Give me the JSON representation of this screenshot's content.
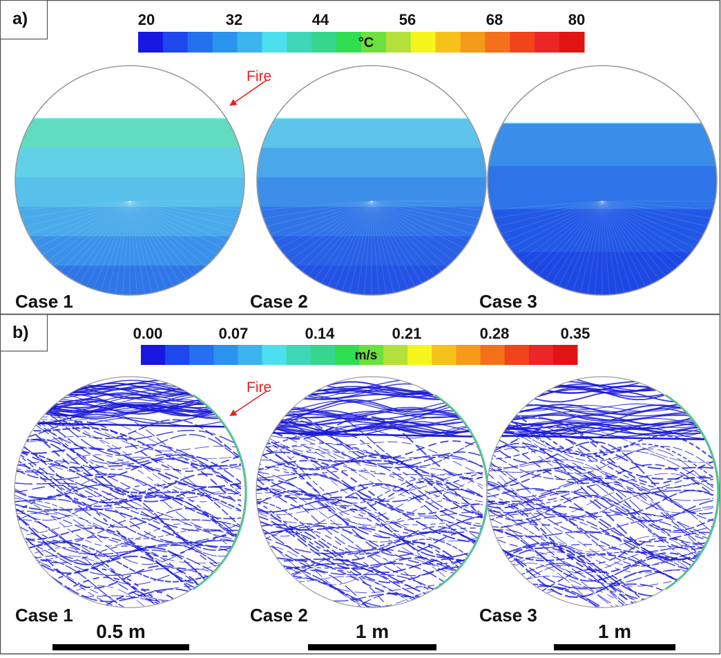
{
  "panel_a": {
    "label": "a)",
    "colorbar": {
      "unit": "°C",
      "ticks": [
        "20",
        "32",
        "44",
        "56",
        "68",
        "80"
      ],
      "colors": [
        "#1818e0",
        "#1f48ec",
        "#2470ee",
        "#2a93ee",
        "#3cb4ee",
        "#4ce0ef",
        "#3fd6b8",
        "#36d68f",
        "#30dd50",
        "#6ce03c",
        "#b4e03c",
        "#f5f51c",
        "#f5c21a",
        "#f59a1a",
        "#f5701a",
        "#f0441a",
        "#ea2626",
        "#e01414"
      ]
    },
    "fire_label": "Fire",
    "cases": [
      {
        "label": "Case 1",
        "fill_fraction": 0.77,
        "band_colors": [
          "#60dcc0",
          "#62d0e6",
          "#58c0ea",
          "#4aaaea",
          "#3c92ea",
          "#3076e8"
        ]
      },
      {
        "label": "Case 2",
        "fill_fraction": 0.77,
        "band_colors": [
          "#5ec4ec",
          "#4aa8ea",
          "#3c8ee8",
          "#3074e8",
          "#2860e6",
          "#2452e4"
        ]
      },
      {
        "label": "Case 3",
        "fill_fraction": 0.75,
        "band_colors": [
          "#3a8eea",
          "#2e74e8",
          "#2258e6",
          "#1e48e2"
        ]
      }
    ]
  },
  "panel_b": {
    "label": "b)",
    "colorbar": {
      "unit": "m/s",
      "ticks": [
        "0.00",
        "0.07",
        "0.14",
        "0.21",
        "0.28",
        "0.35"
      ],
      "colors": [
        "#1818e0",
        "#1f48ec",
        "#2470ee",
        "#2a93ee",
        "#3cb4ee",
        "#4ce0ef",
        "#3fd6b8",
        "#36d68f",
        "#30dd50",
        "#6ce03c",
        "#b4e03c",
        "#f5f51c",
        "#f5c21a",
        "#f59a1a",
        "#f5701a",
        "#f0441a",
        "#ea2626",
        "#e01414"
      ]
    },
    "fire_label": "Fire",
    "cases": [
      {
        "label": "Case 1",
        "scale_label": "0.5 m"
      },
      {
        "label": "Case 2",
        "scale_label": "1 m"
      },
      {
        "label": "Case 3",
        "scale_label": "1 m"
      }
    ],
    "streamline_color": "#1a1ad8",
    "wall_color": "#36d68f"
  },
  "colors": {
    "fire": "#ee1c1c",
    "border": "#555555",
    "tank_outline": "#9a9a9a"
  }
}
